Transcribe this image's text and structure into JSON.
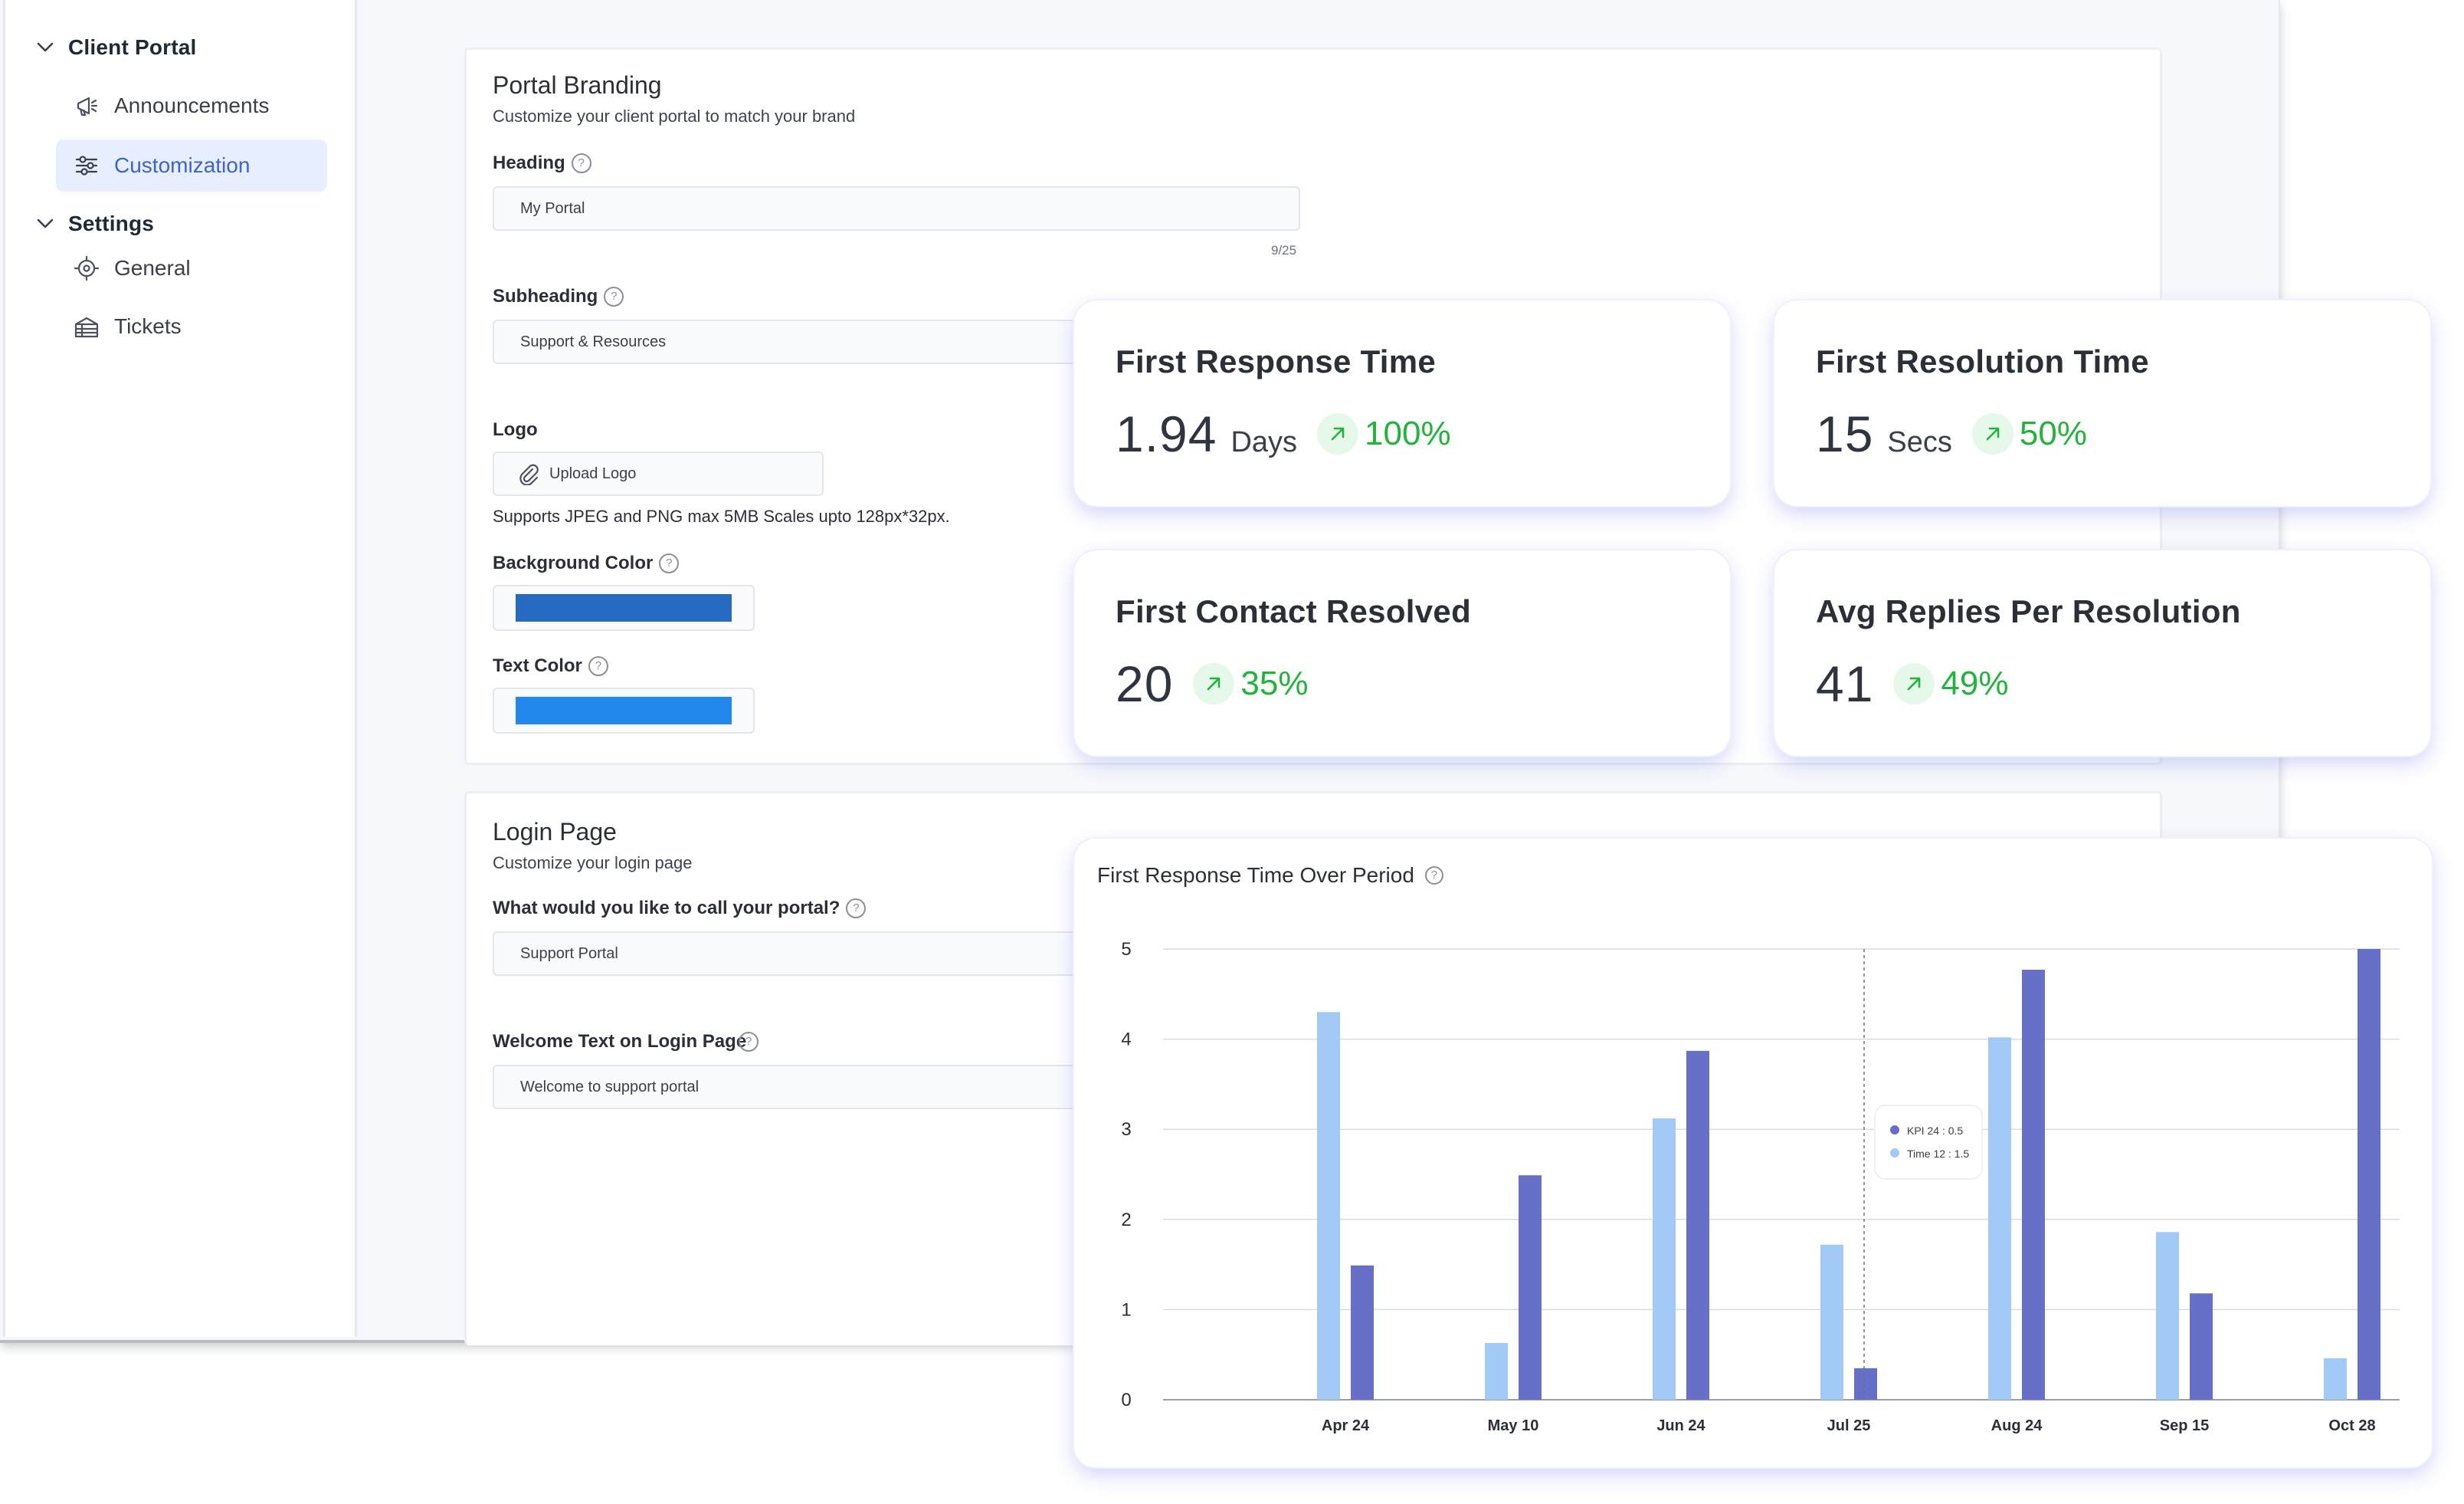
{
  "sidebar": {
    "groups": [
      {
        "label": "Client Portal",
        "items": [
          {
            "label": "Announcements",
            "icon": "megaphone-icon"
          },
          {
            "label": "Customization",
            "icon": "sliders-icon",
            "active": true
          }
        ]
      },
      {
        "label": "Settings",
        "items": [
          {
            "label": "General",
            "icon": "target-icon"
          },
          {
            "label": "Tickets",
            "icon": "tickets-icon"
          }
        ]
      }
    ]
  },
  "branding": {
    "title": "Portal Branding",
    "subtitle": "Customize your client portal to match your brand",
    "heading_label": "Heading",
    "heading_value": "My Portal",
    "heading_counter": "9/25",
    "subheading_label": "Subheading",
    "subheading_value": "Support & Resources",
    "logo_label": "Logo",
    "upload_label": "Upload Logo",
    "logo_hint": "Supports JPEG and PNG max 5MB Scales upto 128px*32px.",
    "bg_color_label": "Background Color",
    "bg_color": "#266ac1",
    "text_color_label": "Text Color",
    "text_color": "#2288ee"
  },
  "login": {
    "title": "Login Page",
    "subtitle": "Customize your login page",
    "portal_name_label": "What would you like to call your portal?",
    "portal_name_value": "Support Portal",
    "welcome_label": "Welcome Text on Login Page",
    "welcome_value": "Welcome to support portal"
  },
  "kpis": [
    {
      "title": "First Response Time",
      "value": "1.94",
      "unit": "Days",
      "change": "100%"
    },
    {
      "title": "First Resolution Time",
      "value": "15",
      "unit": "Secs",
      "change": "50%"
    },
    {
      "title": "First Contact Resolved",
      "value": "20",
      "unit": "",
      "change": "35%"
    },
    {
      "title": "Avg Replies Per Resolution",
      "value": "41",
      "unit": "",
      "change": "49%"
    }
  ],
  "colors": {
    "accent": "#3e63c9",
    "positive": "#21b33b",
    "bar_light": "#a3c9f7",
    "bar_dark": "#6670c9"
  },
  "chart_title": "First Response Time Over Period",
  "chart_data": {
    "type": "bar",
    "categories": [
      "Apr 24",
      "May 10",
      "Jun 24",
      "Jul 25",
      "Aug 24",
      "Sep 15",
      "Oct 28"
    ],
    "series": [
      {
        "values": [
          4.3,
          0.63,
          3.12,
          1.72,
          4.02,
          1.86,
          0.46
        ]
      },
      {
        "values": [
          1.49,
          2.49,
          3.87,
          0.35,
          4.77,
          1.18,
          5.0
        ]
      }
    ],
    "ylim": [
      0,
      5
    ],
    "yticks": [
      0,
      1,
      2,
      3,
      4,
      5
    ],
    "grid": true,
    "tooltip": {
      "items": [
        "KPI 24 : 0.5",
        "Time 12 : 1.5"
      ]
    }
  }
}
